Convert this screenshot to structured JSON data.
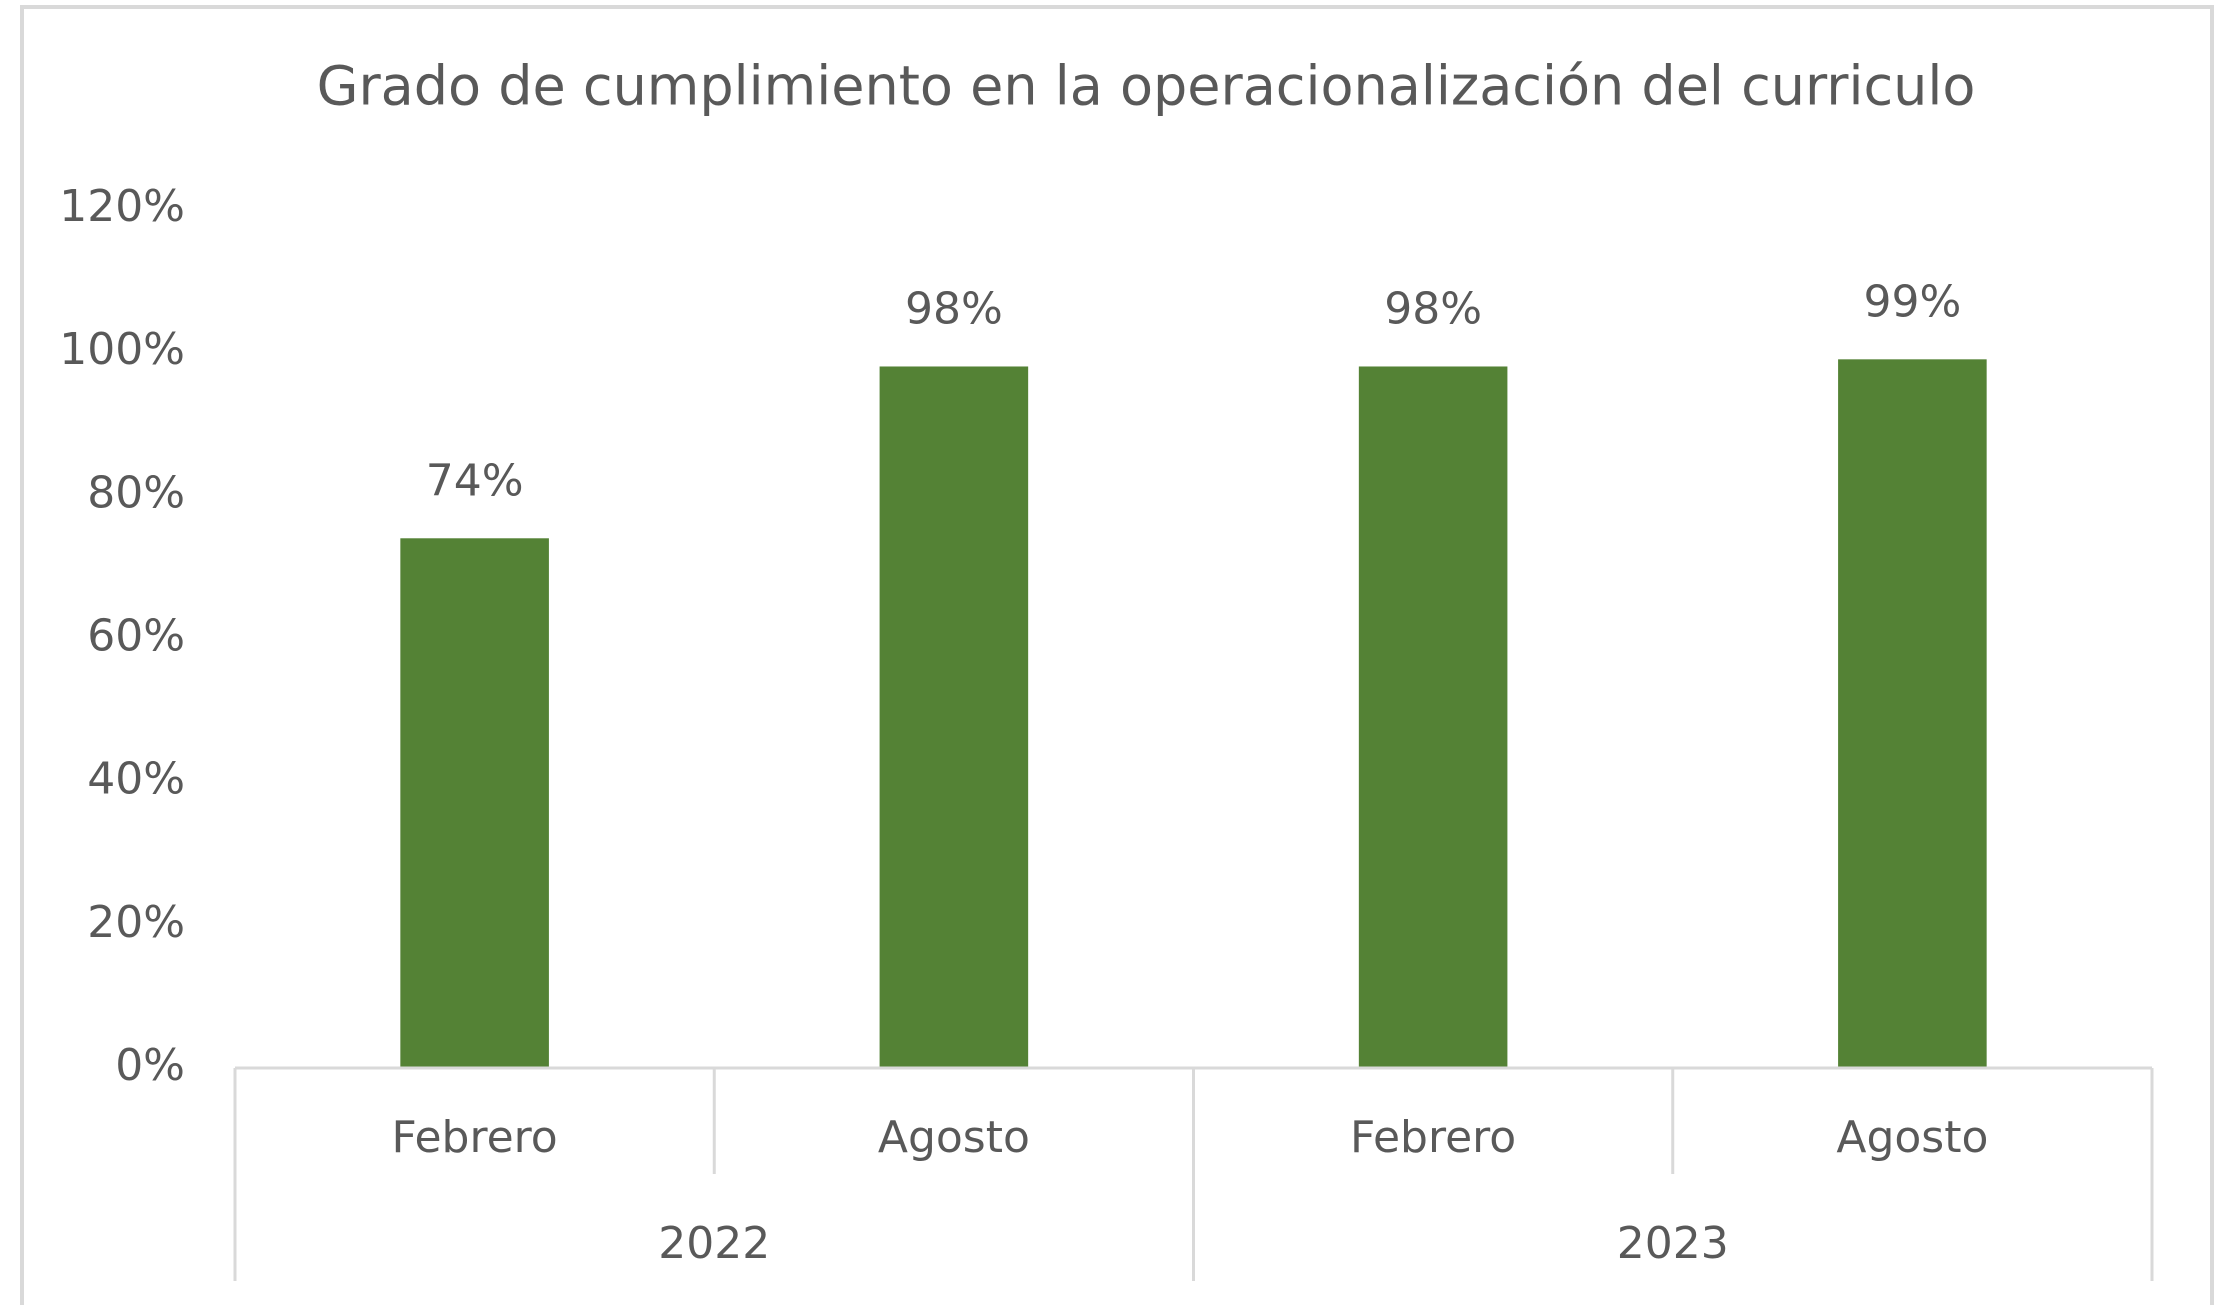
{
  "chart_data": {
    "type": "bar",
    "title": "Grado de cumplimiento en la operacionalización del curriculo",
    "categories": [
      "Febrero",
      "Agosto",
      "Febrero",
      "Agosto"
    ],
    "groups": [
      "2022",
      "2023"
    ],
    "values": [
      74,
      98,
      98,
      99
    ],
    "value_labels": [
      "74%",
      "98%",
      "98%",
      "99%"
    ],
    "color": "#548235",
    "ylim": [
      0,
      120
    ],
    "yticks": [
      {
        "value": 0,
        "label": "0%"
      },
      {
        "value": 20,
        "label": "20%"
      },
      {
        "value": 40,
        "label": "40%"
      },
      {
        "value": 60,
        "label": "60%"
      },
      {
        "value": 80,
        "label": "80%"
      },
      {
        "value": 100,
        "label": "100%"
      },
      {
        "value": 120,
        "label": "120%"
      }
    ],
    "grid": false
  }
}
